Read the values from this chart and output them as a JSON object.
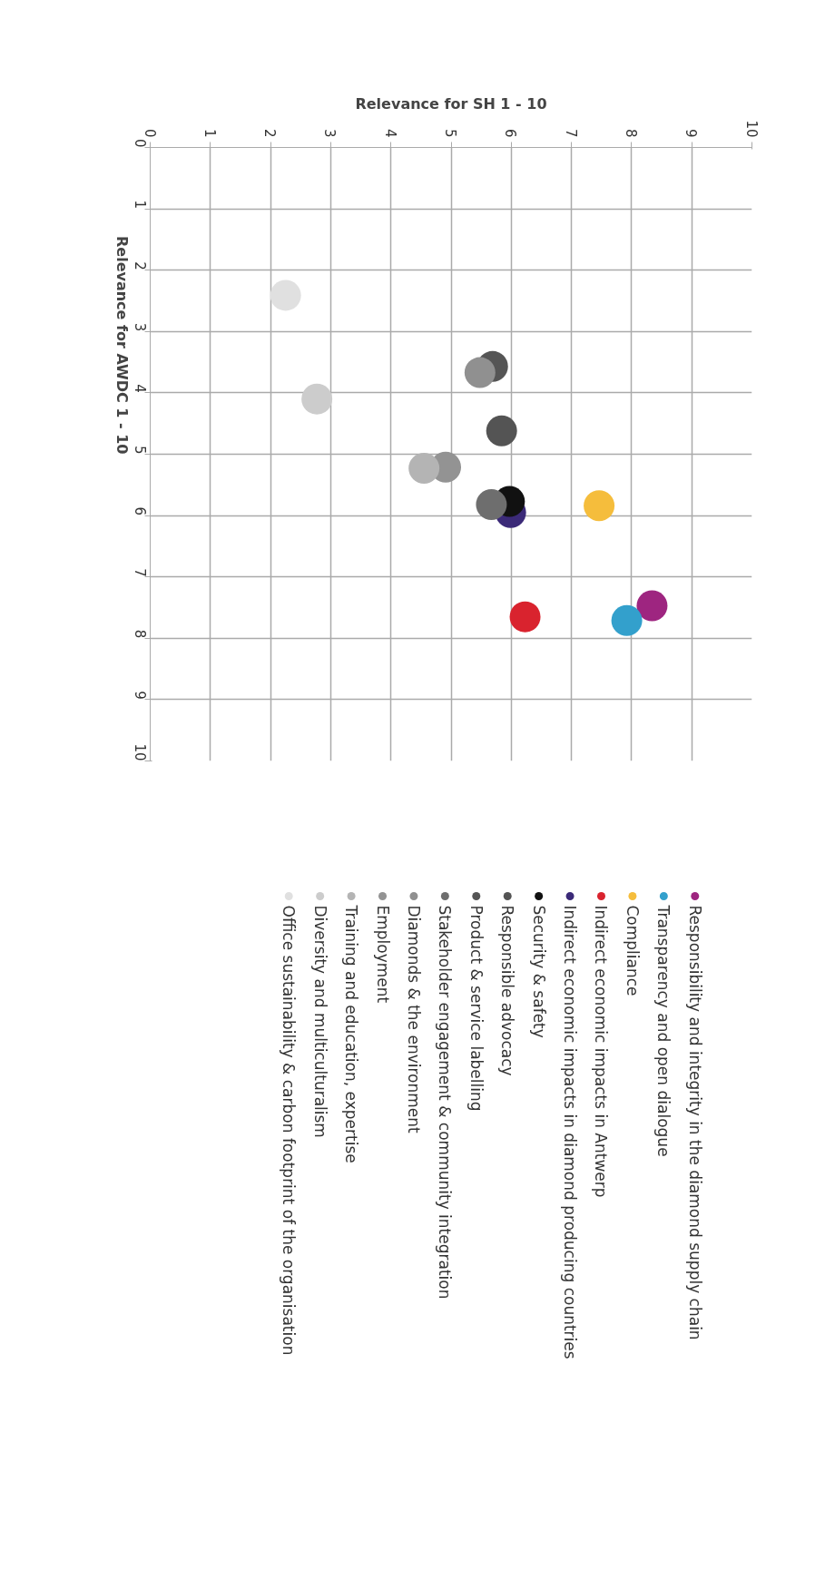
{
  "chart_data": {
    "type": "scatter",
    "xlabel": "Relevance for SH 1 - 10",
    "ylabel": "Relevance for AWDC 1 - 10",
    "xlim": [
      0,
      10
    ],
    "xticks": [
      0,
      1,
      2,
      3,
      4,
      5,
      6,
      7,
      8,
      9,
      10
    ],
    "ylim": [
      10,
      0
    ],
    "yticks": [
      0,
      1,
      2,
      3,
      4,
      5,
      6,
      7,
      8,
      9,
      10
    ],
    "grid": true,
    "legend": "bottom",
    "marker": "circle",
    "series": [
      {
        "name": "Responsibility and integrity in the diamond supply chain",
        "color": "#9e2580",
        "x": [
          8.34
        ],
        "values": [
          7.47
        ]
      },
      {
        "name": "Transparency and open dialogue",
        "color": "#33a0cc",
        "x": [
          7.92
        ],
        "values": [
          7.71
        ]
      },
      {
        "name": "Compliance",
        "color": "#f5bd3c",
        "x": [
          7.46
        ],
        "values": [
          5.84
        ]
      },
      {
        "name": "Indirect economic impacts in Antwerp",
        "color": "#d9232e",
        "x": [
          6.23
        ],
        "values": [
          7.65
        ]
      },
      {
        "name": "Indirect economic impacts in diamond producing countries",
        "color": "#3b2a78",
        "x": [
          5.99
        ],
        "values": [
          5.95
        ]
      },
      {
        "name": "Security & safety",
        "color": "#111111",
        "x": [
          5.97
        ],
        "values": [
          5.77
        ]
      },
      {
        "name": "Responsible advocacy",
        "color": "#545454",
        "x": [
          5.84
        ],
        "values": [
          4.62
        ]
      },
      {
        "name": "Product & service labelling",
        "color": "#555555",
        "x": [
          5.69
        ],
        "values": [
          3.57
        ]
      },
      {
        "name": "Stakeholder engagement & community integration",
        "color": "#6e6e6e",
        "x": [
          5.67
        ],
        "values": [
          5.82
        ]
      },
      {
        "name": "Diamonds & the environment",
        "color": "#909090",
        "x": [
          5.48
        ],
        "values": [
          3.67
        ]
      },
      {
        "name": "Employment",
        "color": "#939393",
        "x": [
          4.91
        ],
        "values": [
          5.21
        ]
      },
      {
        "name": "Training and education, expertise",
        "color": "#b4b4b4",
        "x": [
          4.55
        ],
        "values": [
          5.23
        ]
      },
      {
        "name": "Diversity and multiculturalism",
        "color": "#cccccc",
        "x": [
          2.77
        ],
        "values": [
          4.1
        ]
      },
      {
        "name": "Office sustainability & carbon footprint of the organisation",
        "color": "#e0e0e0",
        "x": [
          2.25
        ],
        "values": [
          2.41
        ]
      }
    ]
  }
}
